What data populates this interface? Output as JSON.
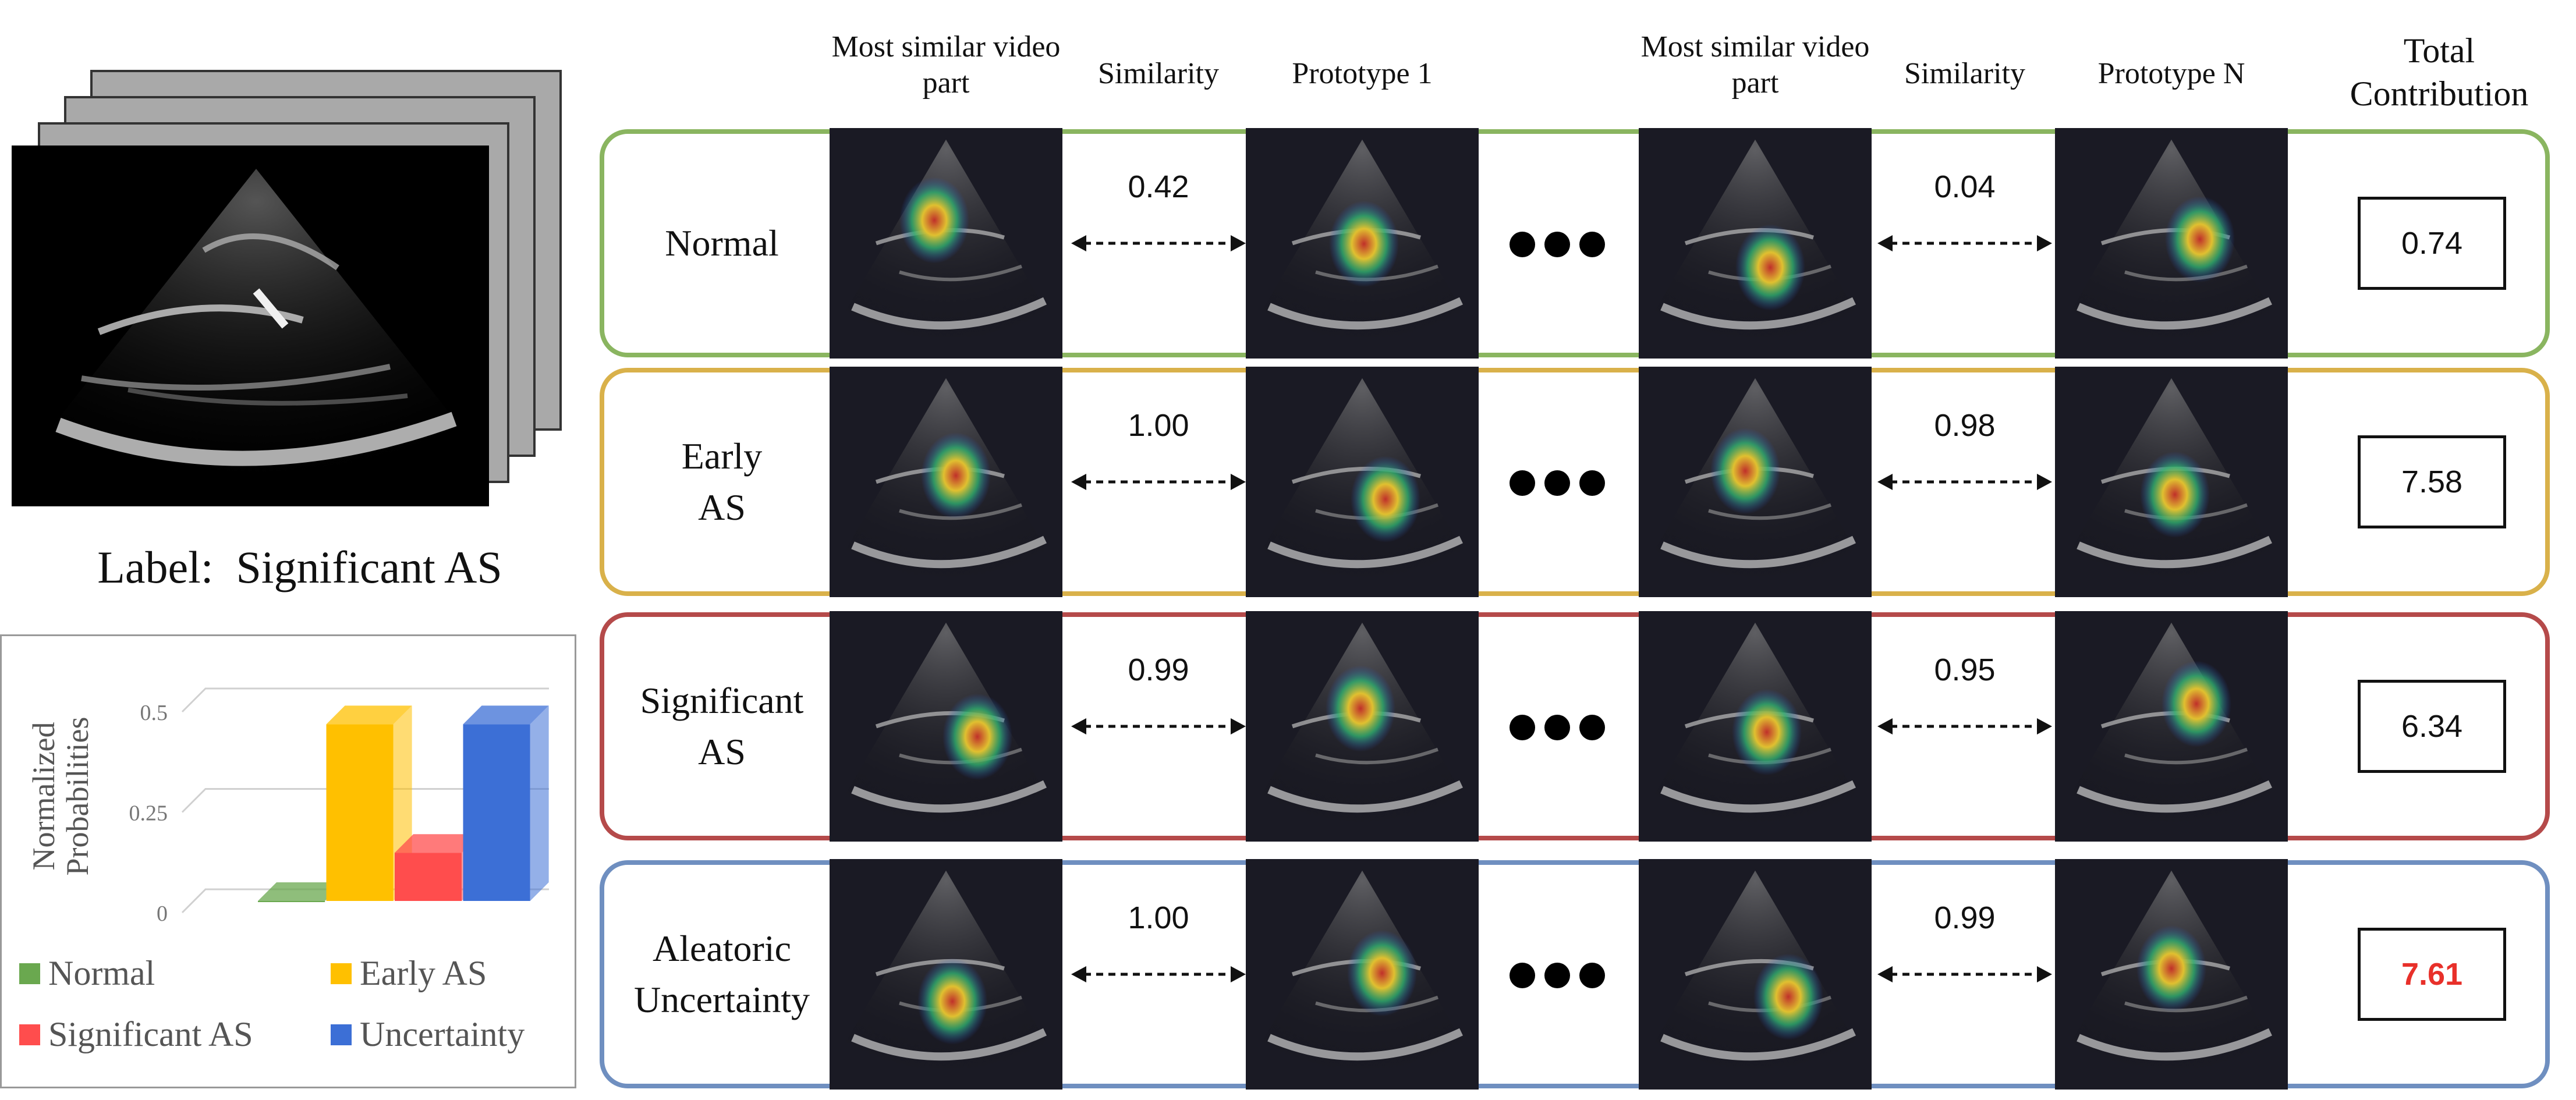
{
  "input": {
    "label_text": "Label:  Significant AS"
  },
  "columns": {
    "most_similar_1": "Most similar video part",
    "similarity_1": "Similarity",
    "prototype_1": "Prototype 1",
    "most_similar_n": "Most similar video part",
    "similarity_n": "Similarity",
    "prototype_n": "Prototype N",
    "total_contribution": "Total Contribution"
  },
  "rows": [
    {
      "label_line1": "Normal",
      "label_line2": "",
      "sim1": "0.42",
      "simN": "0.04",
      "contribution": "0.74",
      "color": "#8ab560",
      "contribution_color": "#111111"
    },
    {
      "label_line1": "Early",
      "label_line2": "AS",
      "sim1": "1.00",
      "simN": "0.98",
      "contribution": "7.58",
      "color": "#d9b14a",
      "contribution_color": "#111111"
    },
    {
      "label_line1": "Significant",
      "label_line2": "AS",
      "sim1": "0.99",
      "simN": "0.95",
      "contribution": "6.34",
      "color": "#b54a4a",
      "contribution_color": "#111111"
    },
    {
      "label_line1": "Aleatoric",
      "label_line2": "Uncertainty",
      "sim1": "1.00",
      "simN": "0.99",
      "contribution": "7.61",
      "color": "#6f8fc0",
      "contribution_color": "#e8302a"
    }
  ],
  "chart_data": {
    "type": "bar",
    "ylabel": "Normalized Probabilities",
    "ylim": [
      0,
      0.5
    ],
    "yticks": [
      "0",
      "0.25",
      "0.5"
    ],
    "categories": [
      "Normal",
      "Early AS",
      "Significant AS",
      "Uncertainty"
    ],
    "values": [
      0.0,
      0.44,
      0.12,
      0.44
    ],
    "colors": [
      "#6aa84f",
      "#ffc000",
      "#ff4d4d",
      "#3c6fd6"
    ]
  }
}
